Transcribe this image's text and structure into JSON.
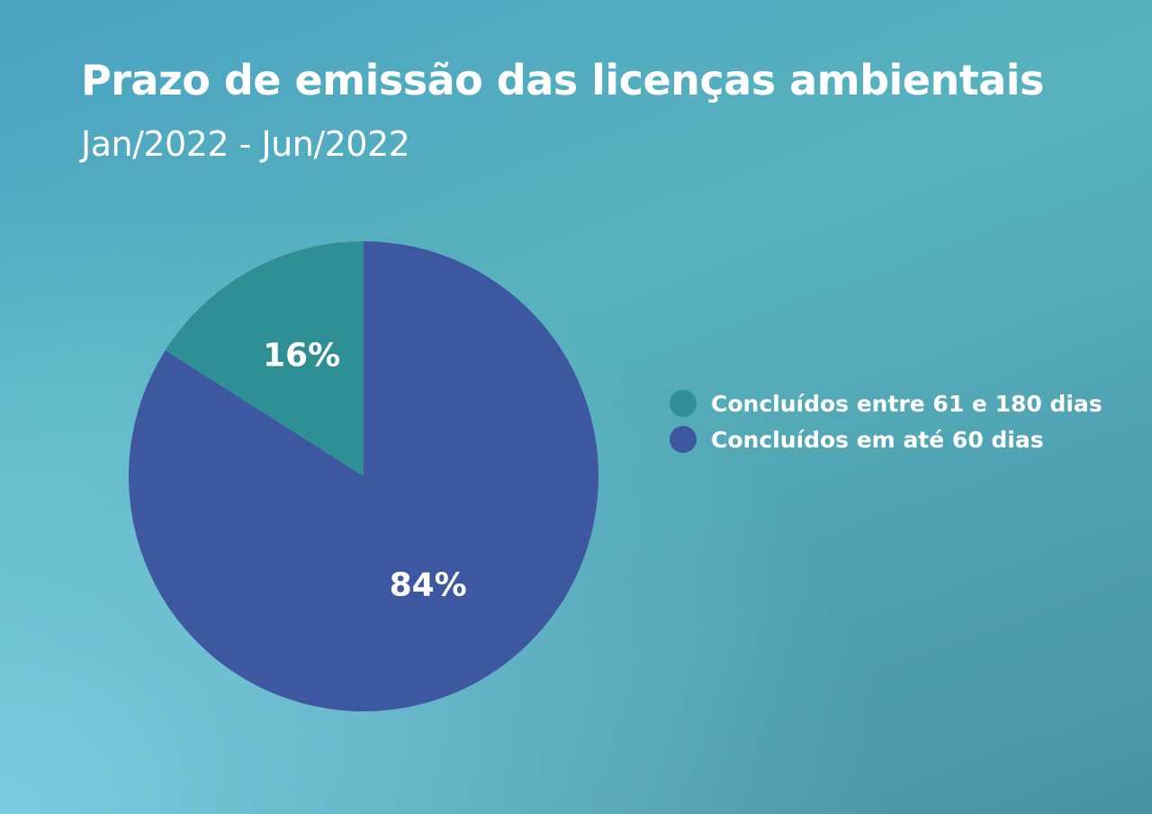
{
  "chart_data": {
    "type": "pie",
    "title": "Prazo de emissão das licenças ambientais",
    "subtitle": "Jan/2022 - Jun/2022",
    "series": [
      {
        "name": "Concluídos entre 61 e 180 dias",
        "value": 16,
        "label": "16%",
        "color": "#2e8f94"
      },
      {
        "name": "Concluídos em até 60 dias",
        "value": 84,
        "label": "84%",
        "color": "#3d58a0"
      }
    ],
    "legend_position": "right"
  }
}
